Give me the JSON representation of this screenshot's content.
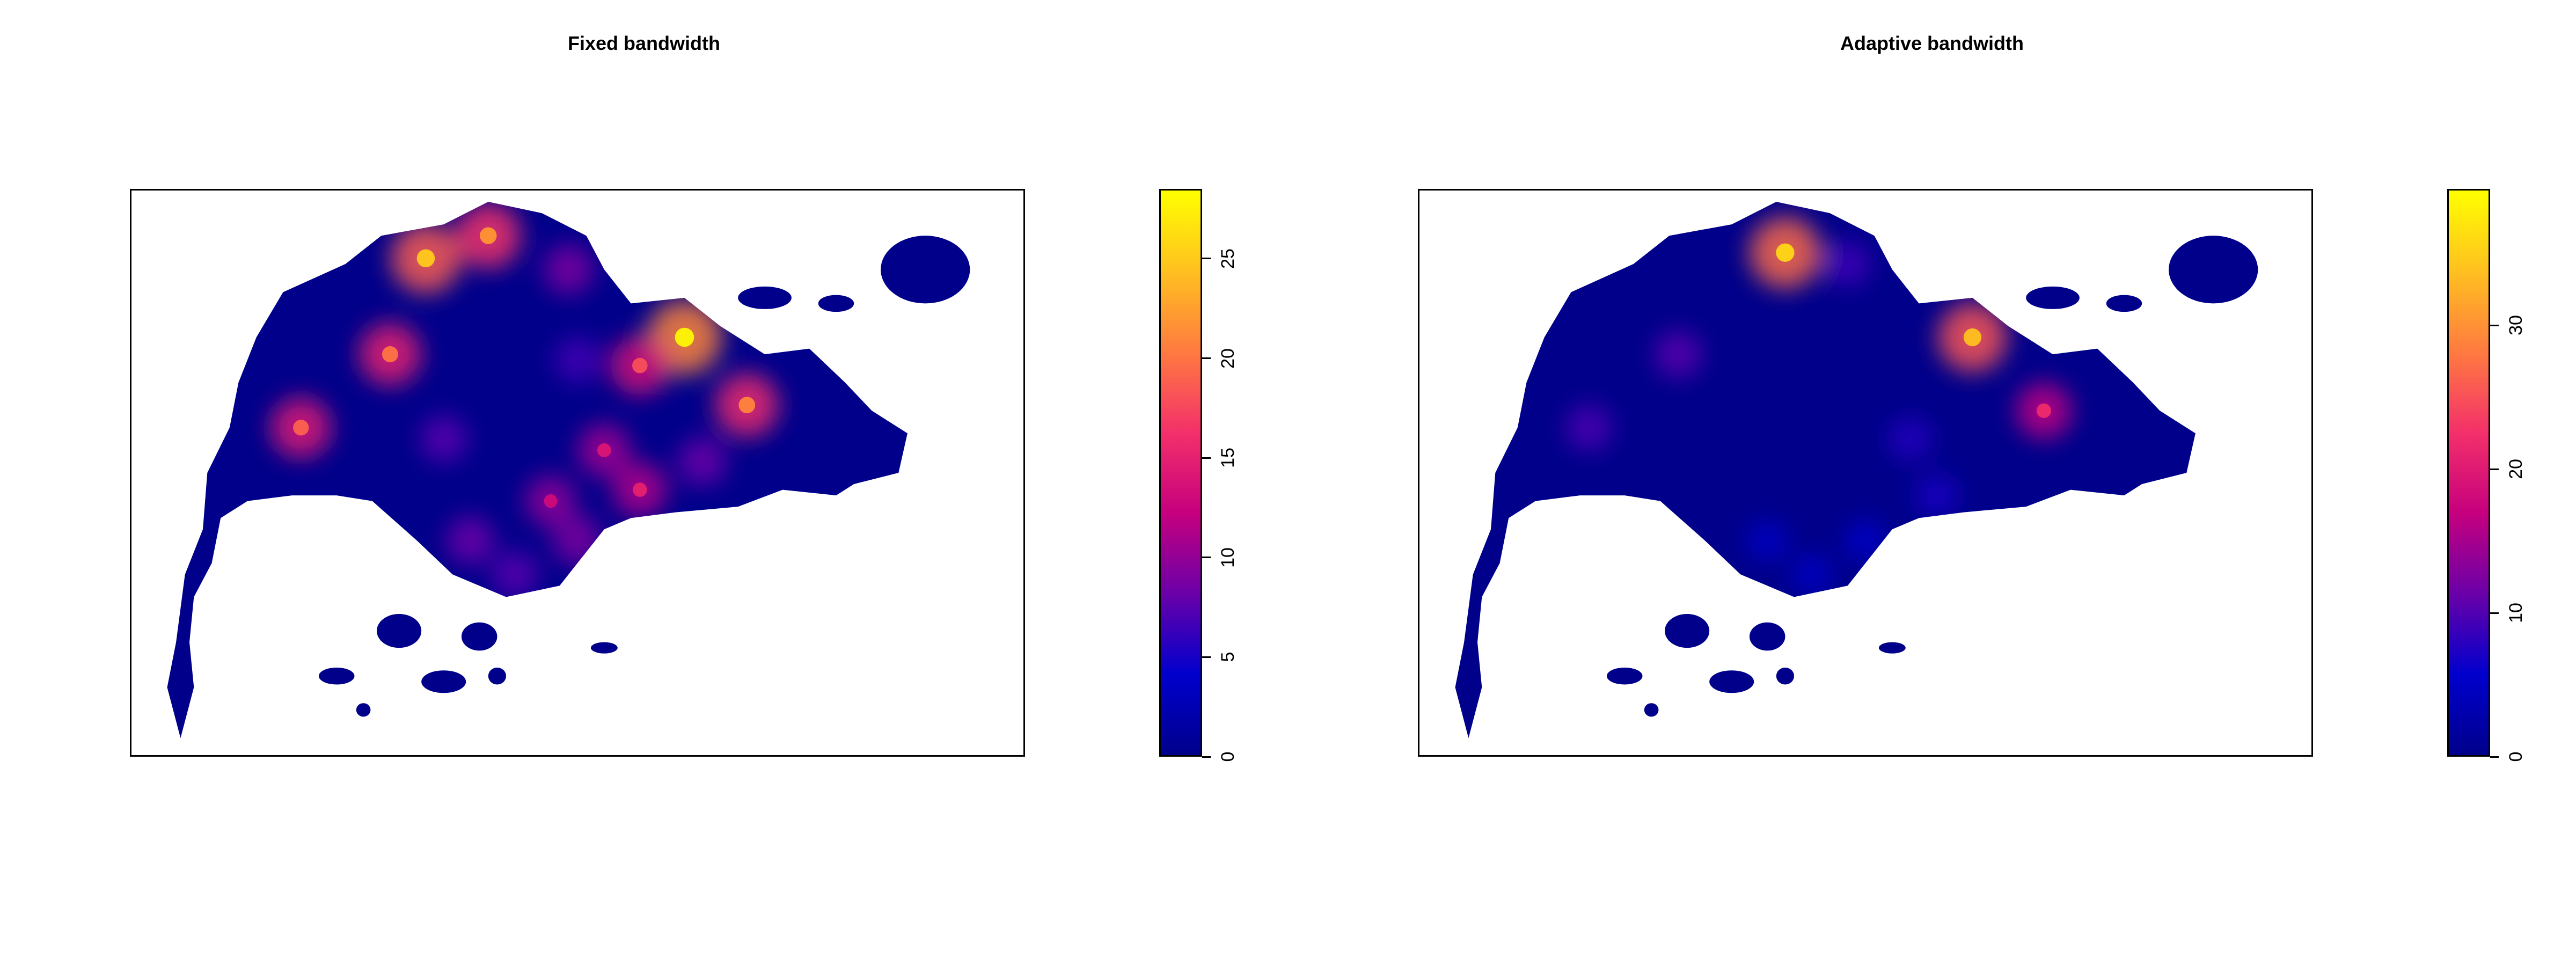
{
  "chart_data": [
    {
      "type": "heatmap",
      "title": "Fixed bandwidth",
      "xlabel": "",
      "ylabel": "",
      "colorbar": {
        "range": [
          0,
          28.5
        ],
        "ticks": [
          "0",
          "5",
          "10",
          "15",
          "20",
          "25"
        ],
        "tick_values": [
          0,
          5,
          10,
          15,
          20,
          25
        ]
      },
      "colormap": [
        "#00008B",
        "#0000CD",
        "#6A00A8",
        "#C6007E",
        "#F3306A",
        "#FF7A40",
        "#FFC020",
        "#FFFF00"
      ],
      "hotspots": [
        {
          "x": 0.33,
          "y": 0.12,
          "value": 25
        },
        {
          "x": 0.4,
          "y": 0.08,
          "value": 22
        },
        {
          "x": 0.62,
          "y": 0.26,
          "value": 28
        },
        {
          "x": 0.57,
          "y": 0.31,
          "value": 18
        },
        {
          "x": 0.29,
          "y": 0.29,
          "value": 20
        },
        {
          "x": 0.19,
          "y": 0.42,
          "value": 19
        },
        {
          "x": 0.69,
          "y": 0.38,
          "value": 21
        },
        {
          "x": 0.53,
          "y": 0.46,
          "value": 14
        },
        {
          "x": 0.47,
          "y": 0.55,
          "value": 13
        },
        {
          "x": 0.57,
          "y": 0.53,
          "value": 15
        },
        {
          "x": 0.38,
          "y": 0.62,
          "value": 11
        },
        {
          "x": 0.5,
          "y": 0.62,
          "value": 12
        },
        {
          "x": 0.43,
          "y": 0.68,
          "value": 10
        },
        {
          "x": 0.35,
          "y": 0.44,
          "value": 10
        },
        {
          "x": 0.64,
          "y": 0.48,
          "value": 11
        },
        {
          "x": 0.5,
          "y": 0.3,
          "value": 9
        },
        {
          "x": 0.49,
          "y": 0.14,
          "value": 12
        }
      ]
    },
    {
      "type": "heatmap",
      "title": "Adaptive bandwidth",
      "xlabel": "",
      "ylabel": "",
      "colorbar": {
        "range": [
          0,
          39.5
        ],
        "ticks": [
          "0",
          "10",
          "20",
          "30"
        ],
        "tick_values": [
          0,
          10,
          20,
          30
        ]
      },
      "colormap": [
        "#00008B",
        "#0000CD",
        "#6A00A8",
        "#C6007E",
        "#F3306A",
        "#FF7A40",
        "#FFC020",
        "#FFFF00"
      ],
      "hotspots": [
        {
          "x": 0.41,
          "y": 0.11,
          "value": 36
        },
        {
          "x": 0.62,
          "y": 0.26,
          "value": 34
        },
        {
          "x": 0.7,
          "y": 0.39,
          "value": 22
        },
        {
          "x": 0.29,
          "y": 0.29,
          "value": 14
        },
        {
          "x": 0.19,
          "y": 0.42,
          "value": 13
        },
        {
          "x": 0.48,
          "y": 0.13,
          "value": 12
        },
        {
          "x": 0.55,
          "y": 0.44,
          "value": 10
        },
        {
          "x": 0.58,
          "y": 0.54,
          "value": 9
        },
        {
          "x": 0.5,
          "y": 0.62,
          "value": 8
        },
        {
          "x": 0.39,
          "y": 0.62,
          "value": 7
        },
        {
          "x": 0.44,
          "y": 0.68,
          "value": 7
        }
      ]
    }
  ]
}
